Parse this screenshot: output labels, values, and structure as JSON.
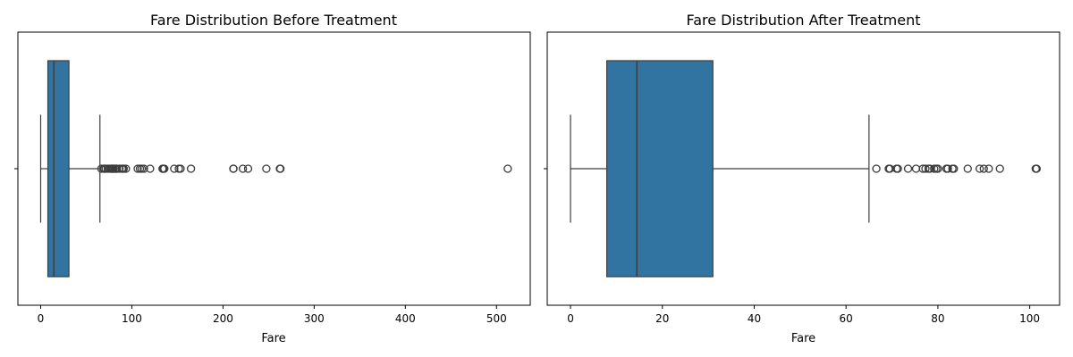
{
  "colors": {
    "box": "#3274a1",
    "line": "#3d3d3d"
  },
  "chart_data": [
    {
      "type": "box",
      "title": "Fare Distribution Before Treatment",
      "xlabel": "Fare",
      "ylabel": "",
      "xlim": [
        -25,
        537
      ],
      "xticks": [
        0,
        100,
        200,
        300,
        400,
        500
      ],
      "box": {
        "whisker_low": 0,
        "q1": 7.9,
        "median": 14.45,
        "q3": 31,
        "whisker_high": 65
      },
      "outliers": [
        66.6,
        69.3,
        69.55,
        71,
        71.28,
        73.5,
        75.25,
        76.73,
        77.29,
        77.96,
        78.27,
        79.2,
        79.65,
        80,
        81.86,
        82.17,
        83.16,
        83.48,
        86.5,
        89.1,
        90,
        91.08,
        93.5,
        106.43,
        108.9,
        110.88,
        113.28,
        120,
        133.65,
        134.5,
        135.63,
        146.52,
        151.55,
        153.46,
        164.87,
        211.34,
        211.5,
        221.78,
        227.53,
        247.52,
        262.38,
        263,
        512.33
      ]
    },
    {
      "type": "box",
      "title": "Fare Distribution After Treatment",
      "xlabel": "Fare",
      "ylabel": "",
      "xlim": [
        -5.07,
        106.5
      ],
      "xticks": [
        0,
        20,
        40,
        60,
        80,
        100
      ],
      "box": {
        "whisker_low": 0,
        "q1": 7.9,
        "median": 14.45,
        "q3": 31,
        "whisker_high": 65
      },
      "outliers": [
        66.6,
        69.3,
        69.55,
        71,
        71.28,
        73.5,
        75.25,
        76.73,
        77.29,
        77.96,
        78.27,
        79.2,
        79.65,
        80,
        81.86,
        82.17,
        83.16,
        83.48,
        86.5,
        89.1,
        90,
        91.08,
        93.5,
        101.3,
        101.5
      ]
    }
  ]
}
